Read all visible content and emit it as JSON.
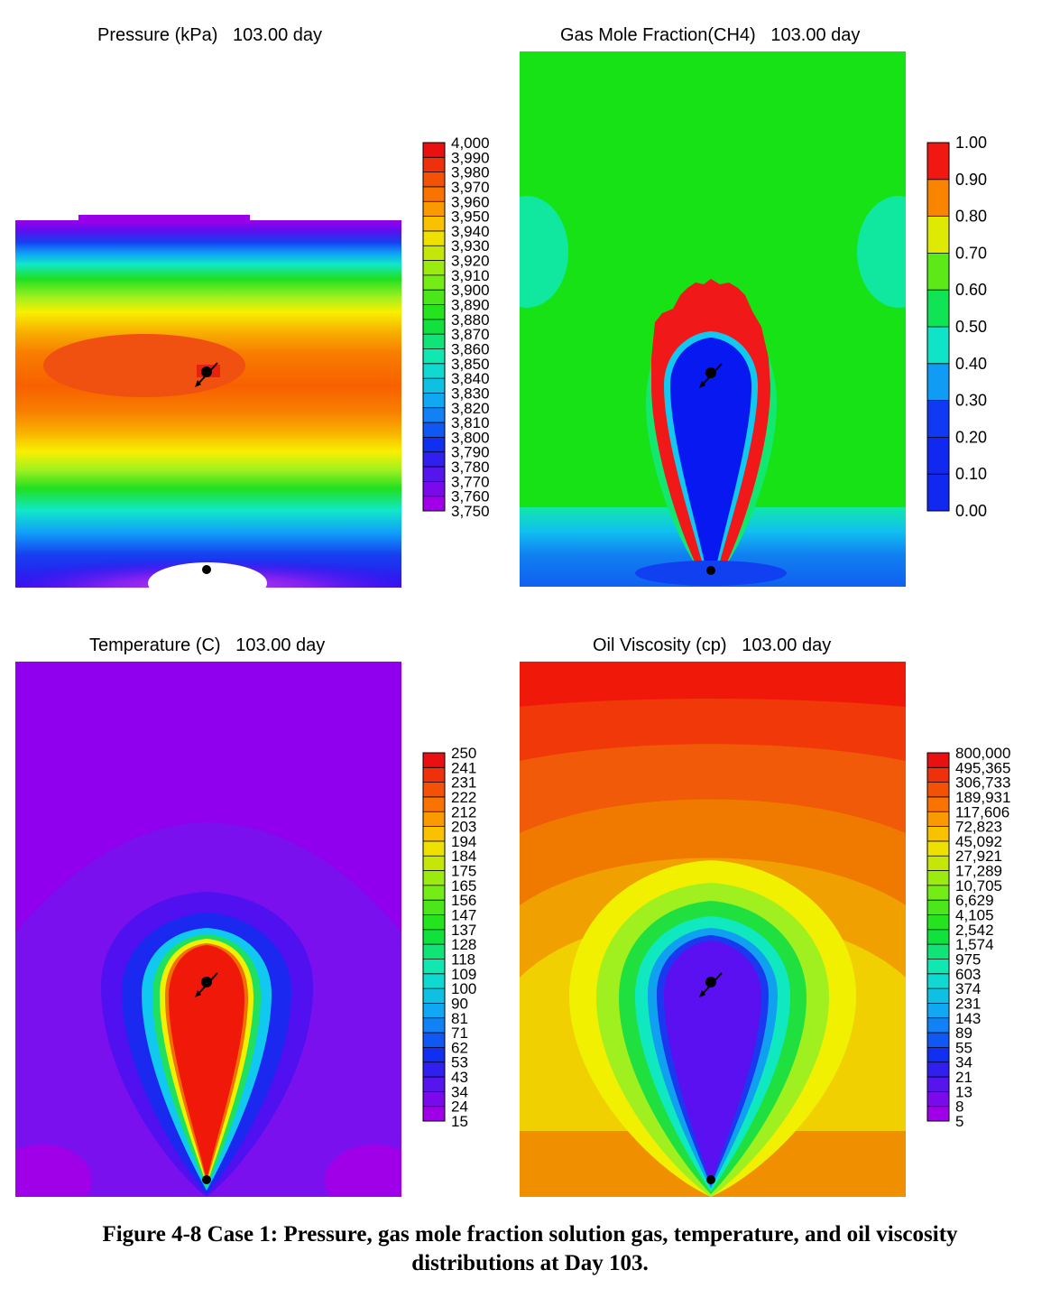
{
  "figure": {
    "caption_line1": "Figure 4-8 Case 1: Pressure, gas mole fraction solution gas, temperature, and oil viscosity",
    "caption_line2": "distributions at Day 103."
  },
  "chart_data": [
    {
      "type": "heatmap",
      "title": "Pressure (kPa)   103.00 day",
      "legend_labels": [
        "4,000",
        "3,990",
        "3,980",
        "3,970",
        "3,960",
        "3,950",
        "3,940",
        "3,930",
        "3,920",
        "3,910",
        "3,900",
        "3,890",
        "3,880",
        "3,870",
        "3,860",
        "3,850",
        "3,840",
        "3,830",
        "3,820",
        "3,810",
        "3,800",
        "3,790",
        "3,780",
        "3,770",
        "3,760",
        "3,750"
      ],
      "legend_min": 3750,
      "legend_max": 4000,
      "legend_placement": "right"
    },
    {
      "type": "heatmap",
      "title": "Gas Mole Fraction(CH4)   103.00 day",
      "legend_labels": [
        "1.00",
        "0.90",
        "0.80",
        "0.70",
        "0.60",
        "0.50",
        "0.40",
        "0.30",
        "0.20",
        "0.10",
        "0.00"
      ],
      "legend_min": 0.0,
      "legend_max": 1.0,
      "legend_placement": "right"
    },
    {
      "type": "heatmap",
      "title": "Temperature (C)   103.00 day",
      "legend_labels": [
        "250",
        "241",
        "231",
        "222",
        "212",
        "203",
        "194",
        "184",
        "175",
        "165",
        "156",
        "147",
        "137",
        "128",
        "118",
        "109",
        "100",
        "90",
        "81",
        "71",
        "62",
        "53",
        "43",
        "34",
        "24",
        "15"
      ],
      "legend_min": 15,
      "legend_max": 250,
      "legend_placement": "right"
    },
    {
      "type": "heatmap",
      "title": "Oil Viscosity (cp)   103.00 day",
      "legend_labels": [
        "800,000",
        "495,365",
        "306,733",
        "189,931",
        "117,606",
        "72,823",
        "45,092",
        "27,921",
        "17,289",
        "10,705",
        "6,629",
        "4,105",
        "2,542",
        "1,574",
        "975",
        "603",
        "374",
        "231",
        "143",
        "89",
        "55",
        "34",
        "21",
        "13",
        "8",
        "5"
      ],
      "legend_min": 5,
      "legend_max": 800000,
      "legend_placement": "right"
    }
  ]
}
